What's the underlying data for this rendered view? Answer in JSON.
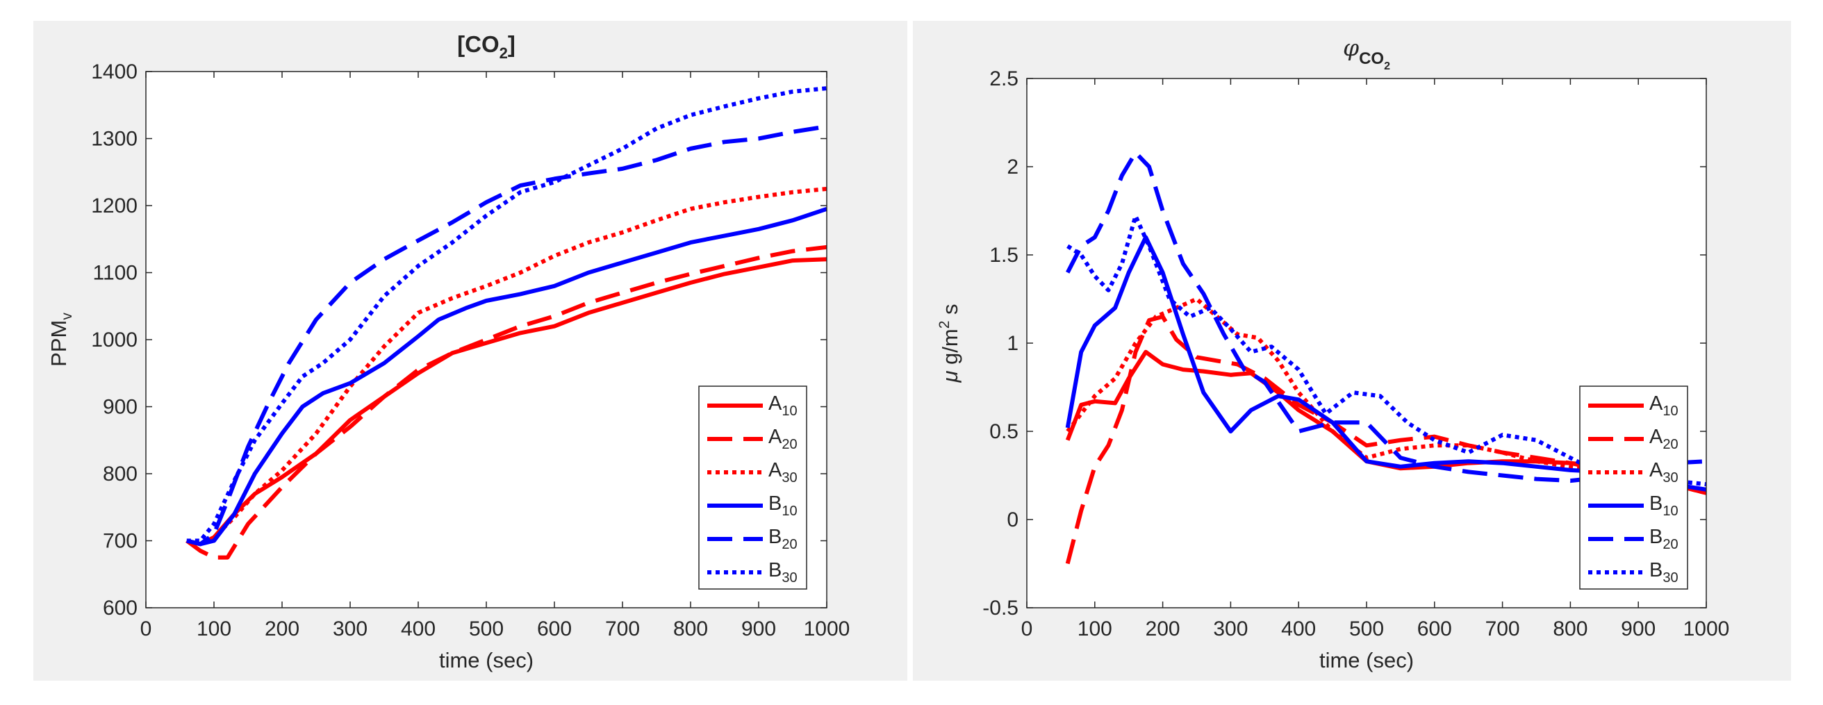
{
  "figure": {
    "background": "#f0f0f0",
    "axes_background": "#ffffff",
    "colors": {
      "A": "#ff0000",
      "B": "#0000ff"
    }
  },
  "chart_data": [
    {
      "type": "line",
      "title": "[CO2]",
      "title_parts": {
        "base": "[CO",
        "sub": "2",
        "tail": "]"
      },
      "xlabel": "time (sec)",
      "ylabel": "PPM",
      "ylabel_sub": "v",
      "xlim": [
        0,
        1000
      ],
      "ylim": [
        600,
        1400
      ],
      "xticks": [
        0,
        100,
        200,
        300,
        400,
        500,
        600,
        700,
        800,
        900,
        1000
      ],
      "yticks": [
        600,
        700,
        800,
        900,
        1000,
        1100,
        1200,
        1300,
        1400
      ],
      "legend_location": "bottom-right",
      "series": [
        {
          "name": "A10",
          "label_base": "A",
          "label_sub": "10",
          "color": "#ff0000",
          "style": "solid",
          "x": [
            60,
            80,
            100,
            130,
            160,
            200,
            250,
            300,
            350,
            400,
            450,
            500,
            550,
            600,
            650,
            700,
            750,
            800,
            850,
            900,
            950,
            1000
          ],
          "y": [
            700,
            695,
            705,
            740,
            770,
            795,
            830,
            880,
            915,
            950,
            980,
            995,
            1010,
            1020,
            1040,
            1055,
            1070,
            1085,
            1098,
            1108,
            1118,
            1120
          ]
        },
        {
          "name": "A20",
          "label_base": "A",
          "label_sub": "20",
          "color": "#ff0000",
          "style": "dashed",
          "x": [
            60,
            80,
            100,
            120,
            150,
            200,
            250,
            300,
            350,
            400,
            450,
            500,
            550,
            600,
            650,
            700,
            750,
            800,
            850,
            900,
            950,
            1000
          ],
          "y": [
            700,
            685,
            675,
            675,
            725,
            780,
            830,
            870,
            915,
            955,
            980,
            1000,
            1020,
            1035,
            1055,
            1070,
            1085,
            1098,
            1110,
            1122,
            1132,
            1138
          ]
        },
        {
          "name": "A30",
          "label_base": "A",
          "label_sub": "30",
          "color": "#ff0000",
          "style": "dotted",
          "x": [
            60,
            80,
            100,
            130,
            160,
            200,
            250,
            300,
            350,
            400,
            450,
            500,
            550,
            600,
            650,
            700,
            750,
            800,
            850,
            900,
            950,
            1000
          ],
          "y": [
            700,
            695,
            705,
            735,
            770,
            805,
            860,
            930,
            990,
            1040,
            1062,
            1080,
            1100,
            1125,
            1145,
            1160,
            1178,
            1195,
            1205,
            1213,
            1220,
            1225
          ]
        },
        {
          "name": "B10",
          "label_base": "B",
          "label_sub": "10",
          "color": "#0000ff",
          "style": "solid",
          "x": [
            60,
            80,
            100,
            130,
            160,
            200,
            230,
            260,
            300,
            350,
            400,
            430,
            470,
            500,
            550,
            600,
            650,
            700,
            750,
            800,
            850,
            900,
            950,
            1000
          ],
          "y": [
            700,
            695,
            700,
            740,
            800,
            860,
            900,
            920,
            935,
            965,
            1005,
            1030,
            1047,
            1058,
            1068,
            1080,
            1100,
            1115,
            1130,
            1145,
            1155,
            1165,
            1178,
            1195
          ]
        },
        {
          "name": "B20",
          "label_base": "B",
          "label_sub": "20",
          "color": "#0000ff",
          "style": "dashed",
          "x": [
            60,
            80,
            100,
            120,
            150,
            180,
            210,
            250,
            300,
            350,
            400,
            450,
            500,
            550,
            600,
            650,
            700,
            750,
            800,
            850,
            900,
            950,
            1000
          ],
          "y": [
            700,
            695,
            710,
            760,
            840,
            905,
            965,
            1030,
            1085,
            1120,
            1148,
            1175,
            1205,
            1230,
            1240,
            1248,
            1255,
            1268,
            1285,
            1295,
            1300,
            1310,
            1318
          ]
        },
        {
          "name": "B30",
          "label_base": "B",
          "label_sub": "30",
          "color": "#0000ff",
          "style": "dotted",
          "x": [
            60,
            80,
            100,
            130,
            160,
            200,
            230,
            260,
            300,
            350,
            400,
            450,
            500,
            550,
            600,
            650,
            700,
            750,
            800,
            850,
            900,
            950,
            1000
          ],
          "y": [
            700,
            700,
            725,
            790,
            850,
            905,
            945,
            965,
            1000,
            1065,
            1110,
            1145,
            1185,
            1220,
            1235,
            1260,
            1285,
            1315,
            1335,
            1348,
            1360,
            1370,
            1375
          ]
        }
      ]
    },
    {
      "type": "line",
      "title": "φCO2",
      "title_parts": {
        "base": "φ",
        "sub": "CO",
        "subsub": "2"
      },
      "xlabel": "time (sec)",
      "ylabel": "μ g/m2 s",
      "ylabel_parts": {
        "mu": "μ",
        "base": "g/m",
        "sup": "2",
        "tail": "s"
      },
      "xlim": [
        0,
        1000
      ],
      "ylim": [
        -0.5,
        2.5
      ],
      "xticks": [
        0,
        100,
        200,
        300,
        400,
        500,
        600,
        700,
        800,
        900,
        1000
      ],
      "yticks": [
        -0.5,
        0,
        0.5,
        1,
        1.5,
        2,
        2.5
      ],
      "yticklabels": [
        "-0.5",
        "0",
        "0.5",
        "1",
        "1.5",
        "2",
        "2.5"
      ],
      "legend_location": "bottom-right",
      "series": [
        {
          "name": "A10",
          "label_base": "A",
          "label_sub": "10",
          "color": "#ff0000",
          "style": "solid",
          "x": [
            60,
            80,
            100,
            130,
            150,
            175,
            200,
            230,
            260,
            300,
            330,
            370,
            400,
            450,
            500,
            550,
            600,
            650,
            700,
            750,
            800,
            850,
            900,
            950,
            1000
          ],
          "y": [
            0.45,
            0.65,
            0.67,
            0.66,
            0.8,
            0.95,
            0.88,
            0.85,
            0.84,
            0.82,
            0.83,
            0.72,
            0.62,
            0.5,
            0.33,
            0.29,
            0.3,
            0.32,
            0.33,
            0.33,
            0.32,
            0.28,
            0.25,
            0.2,
            0.15
          ]
        },
        {
          "name": "A20",
          "label_base": "A",
          "label_sub": "20",
          "color": "#ff0000",
          "style": "dashed",
          "x": [
            60,
            80,
            100,
            120,
            140,
            160,
            180,
            200,
            220,
            250,
            280,
            310,
            350,
            400,
            450,
            500,
            550,
            600,
            650,
            700,
            750,
            800,
            850,
            900,
            950,
            1000
          ],
          "y": [
            -0.25,
            0.05,
            0.3,
            0.42,
            0.62,
            0.95,
            1.13,
            1.15,
            1.02,
            0.92,
            0.9,
            0.88,
            0.8,
            0.65,
            0.55,
            0.42,
            0.45,
            0.47,
            0.42,
            0.38,
            0.35,
            0.32,
            0.3,
            0.25,
            0.2,
            0.15
          ]
        },
        {
          "name": "A30",
          "label_base": "A",
          "label_sub": "30",
          "color": "#ff0000",
          "style": "dotted",
          "x": [
            60,
            80,
            100,
            130,
            160,
            190,
            220,
            250,
            280,
            310,
            340,
            370,
            400,
            450,
            500,
            550,
            600,
            650,
            700,
            750,
            800,
            850,
            900,
            950,
            1000
          ],
          "y": [
            0.5,
            0.6,
            0.7,
            0.8,
            1.0,
            1.15,
            1.2,
            1.25,
            1.15,
            1.05,
            1.03,
            0.9,
            0.72,
            0.5,
            0.35,
            0.4,
            0.42,
            0.42,
            0.38,
            0.33,
            0.3,
            0.28,
            0.25,
            0.2,
            0.15
          ]
        },
        {
          "name": "B10",
          "label_base": "B",
          "label_sub": "10",
          "color": "#0000ff",
          "style": "solid",
          "x": [
            60,
            80,
            100,
            130,
            150,
            175,
            200,
            230,
            260,
            300,
            330,
            370,
            400,
            450,
            500,
            550,
            600,
            650,
            700,
            750,
            800,
            850,
            900,
            950,
            1000
          ],
          "y": [
            0.52,
            0.95,
            1.1,
            1.2,
            1.4,
            1.6,
            1.4,
            1.05,
            0.72,
            0.5,
            0.62,
            0.7,
            0.68,
            0.55,
            0.33,
            0.3,
            0.32,
            0.33,
            0.32,
            0.3,
            0.28,
            0.27,
            0.25,
            0.2,
            0.17
          ]
        },
        {
          "name": "B20",
          "label_base": "B",
          "label_sub": "20",
          "color": "#0000ff",
          "style": "dashed",
          "x": [
            60,
            80,
            100,
            120,
            140,
            160,
            180,
            200,
            230,
            260,
            290,
            320,
            350,
            400,
            450,
            500,
            550,
            600,
            650,
            700,
            750,
            800,
            850,
            900,
            950,
            1000
          ],
          "y": [
            1.4,
            1.55,
            1.6,
            1.75,
            1.95,
            2.08,
            2.0,
            1.75,
            1.45,
            1.28,
            1.05,
            0.85,
            0.78,
            0.5,
            0.55,
            0.55,
            0.35,
            0.3,
            0.27,
            0.25,
            0.23,
            0.22,
            0.24,
            0.28,
            0.32,
            0.33
          ]
        },
        {
          "name": "B30",
          "label_base": "B",
          "label_sub": "30",
          "color": "#0000ff",
          "style": "dotted",
          "x": [
            60,
            80,
            100,
            120,
            140,
            160,
            180,
            210,
            240,
            270,
            300,
            330,
            360,
            400,
            440,
            480,
            520,
            560,
            600,
            650,
            700,
            750,
            800,
            850,
            900,
            950,
            1000
          ],
          "y": [
            1.55,
            1.5,
            1.38,
            1.3,
            1.45,
            1.72,
            1.55,
            1.25,
            1.15,
            1.2,
            1.08,
            0.95,
            0.98,
            0.85,
            0.6,
            0.72,
            0.7,
            0.55,
            0.45,
            0.38,
            0.48,
            0.45,
            0.35,
            0.25,
            0.2,
            0.22,
            0.2
          ]
        }
      ]
    }
  ]
}
